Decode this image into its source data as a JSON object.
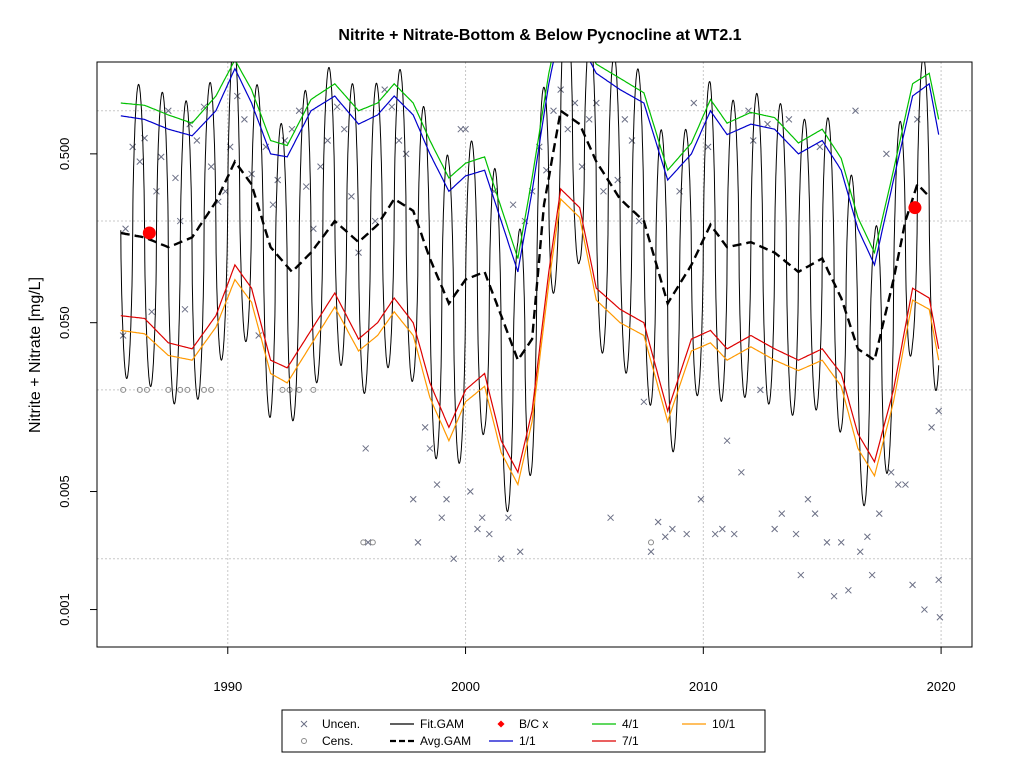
{
  "chart_data": {
    "type": "line",
    "title": "Nitrite + Nitrate-Bottom & Below Pycnocline at WT2.1",
    "ylabel": "Nitrite + Nitrate [mg/L]",
    "xlabel": "",
    "y_scale": "log",
    "xlim": [
      1984.5,
      2021.3
    ],
    "ylim": [
      0.0006,
      1.75
    ],
    "x_ticks": [
      1990,
      2000,
      2010,
      2020
    ],
    "x_tick_labels": [
      "1990",
      "2000",
      "2010",
      "2020"
    ],
    "y_ticks": [
      0.001,
      0.005,
      0.05,
      0.5
    ],
    "y_tick_labels": [
      "0.001",
      "0.005",
      "0.050",
      "0.500"
    ],
    "y_gridlines": [
      0.002,
      0.02,
      0.2,
      0.9
    ],
    "grid": true,
    "legend_position": "bottom",
    "colors": {
      "uncen": "#6b6f85",
      "cens": "#8a8a8a",
      "fit_gam": "#000000",
      "avg_gam": "#000000",
      "bc": "#ff0000",
      "apr": "#00c000",
      "jan": "#0000cc",
      "jul": "#dd0000",
      "oct": "#ff9900"
    },
    "legend": [
      {
        "label": "Uncen.",
        "symbol": "cross"
      },
      {
        "label": "Cens.",
        "symbol": "circle"
      },
      {
        "label": "Fit.GAM",
        "symbol": "solid-line"
      },
      {
        "label": "Avg.GAM",
        "symbol": "dashed-line"
      },
      {
        "label": "B/C x",
        "symbol": "diamond"
      },
      {
        "label": "1/1",
        "symbol": "blue-line"
      },
      {
        "label": "4/1",
        "symbol": "green-line"
      },
      {
        "label": "7/1",
        "symbol": "red-line"
      },
      {
        "label": "10/1",
        "symbol": "orange-line"
      }
    ],
    "bc_points": [
      {
        "x": 1986.7,
        "y": 0.17
      },
      {
        "x": 2018.9,
        "y": 0.24
      }
    ],
    "series": [
      {
        "name": "Avg.GAM",
        "x": [
          1985.5,
          1986.5,
          1987.5,
          1988.5,
          1989.5,
          1990.3,
          1991.0,
          1991.8,
          1992.7,
          1993.5,
          1994.5,
          1995.5,
          1996.3,
          1997.0,
          1997.8,
          1998.5,
          1999.3,
          2000.0,
          2000.8,
          2001.5,
          2002.2,
          2002.8,
          2003.3,
          2004.0,
          2004.8,
          2005.5,
          2006.5,
          2007.5,
          2008.5,
          2009.5,
          2010.3,
          2011.0,
          2012.0,
          2013.0,
          2014.0,
          2015.0,
          2015.8,
          2016.5,
          2017.2,
          2018.0,
          2018.5,
          2019.0,
          2019.5
        ],
        "y": [
          0.17,
          0.16,
          0.14,
          0.16,
          0.26,
          0.45,
          0.33,
          0.14,
          0.1,
          0.13,
          0.2,
          0.15,
          0.19,
          0.27,
          0.23,
          0.12,
          0.065,
          0.09,
          0.1,
          0.055,
          0.03,
          0.04,
          0.25,
          0.9,
          0.75,
          0.45,
          0.27,
          0.2,
          0.065,
          0.11,
          0.19,
          0.14,
          0.15,
          0.13,
          0.1,
          0.12,
          0.07,
          0.035,
          0.03,
          0.09,
          0.2,
          0.33,
          0.28
        ]
      },
      {
        "name": "1/1",
        "x": [
          1985.5,
          1986.5,
          1987.5,
          1988.5,
          1989.5,
          1990.3,
          1991.0,
          1991.8,
          1992.5,
          1993.5,
          1994.5,
          1995.5,
          1996.3,
          1997.0,
          1997.8,
          1998.5,
          1999.3,
          2000.0,
          2000.8,
          2001.5,
          2002.2,
          2002.8,
          2003.5,
          2004.0,
          2004.8,
          2005.5,
          2006.5,
          2007.5,
          2008.5,
          2009.5,
          2010.3,
          2011.0,
          2012.0,
          2013.0,
          2014.0,
          2015.0,
          2015.8,
          2016.5,
          2017.2,
          2018.0,
          2018.8,
          2019.5,
          2019.9
        ],
        "y": [
          0.84,
          0.8,
          0.7,
          0.64,
          0.9,
          1.6,
          1.0,
          0.5,
          0.48,
          0.9,
          1.1,
          0.75,
          0.85,
          1.1,
          0.85,
          0.5,
          0.3,
          0.37,
          0.4,
          0.2,
          0.1,
          0.3,
          1.3,
          2.8,
          2.3,
          1.5,
          1.2,
          1.0,
          0.35,
          0.5,
          0.9,
          0.65,
          0.75,
          0.7,
          0.5,
          0.6,
          0.4,
          0.18,
          0.11,
          0.35,
          1.1,
          1.3,
          0.65
        ]
      },
      {
        "name": "4/1",
        "x": [
          1985.5,
          1986.5,
          1987.5,
          1988.5,
          1989.5,
          1990.3,
          1991.0,
          1991.8,
          1992.5,
          1993.5,
          1994.5,
          1995.5,
          1996.3,
          1997.0,
          1997.8,
          1998.5,
          1999.3,
          2000.0,
          2000.8,
          2001.5,
          2002.2,
          2002.8,
          2003.5,
          2004.0,
          2004.8,
          2005.5,
          2006.5,
          2007.5,
          2008.5,
          2009.5,
          2010.3,
          2011.0,
          2012.0,
          2013.0,
          2014.0,
          2015.0,
          2015.8,
          2016.5,
          2017.2,
          2018.0,
          2018.8,
          2019.5,
          2019.9
        ],
        "y": [
          1.0,
          0.97,
          0.85,
          0.76,
          1.1,
          1.8,
          1.2,
          0.6,
          0.56,
          1.05,
          1.3,
          0.9,
          1.0,
          1.3,
          1.0,
          0.6,
          0.36,
          0.44,
          0.48,
          0.24,
          0.12,
          0.36,
          1.5,
          3.2,
          2.6,
          1.7,
          1.4,
          1.15,
          0.4,
          0.58,
          1.05,
          0.76,
          0.88,
          0.82,
          0.58,
          0.7,
          0.47,
          0.21,
          0.13,
          0.4,
          1.3,
          1.5,
          0.8
        ]
      },
      {
        "name": "7/1",
        "x": [
          1985.5,
          1986.5,
          1987.5,
          1988.5,
          1989.5,
          1990.3,
          1991.0,
          1991.8,
          1992.5,
          1993.5,
          1994.5,
          1995.5,
          1996.3,
          1997.0,
          1997.8,
          1998.5,
          1999.3,
          2000.0,
          2000.8,
          2001.5,
          2002.2,
          2002.8,
          2003.5,
          2004.0,
          2004.8,
          2005.5,
          2006.5,
          2007.5,
          2008.5,
          2009.5,
          2010.3,
          2011.0,
          2012.0,
          2013.0,
          2014.0,
          2015.0,
          2015.8,
          2016.5,
          2017.2,
          2018.0,
          2018.8,
          2019.5,
          2019.9
        ],
        "y": [
          0.055,
          0.053,
          0.038,
          0.035,
          0.055,
          0.11,
          0.08,
          0.03,
          0.027,
          0.045,
          0.075,
          0.04,
          0.05,
          0.07,
          0.05,
          0.022,
          0.012,
          0.02,
          0.025,
          0.01,
          0.0065,
          0.015,
          0.1,
          0.31,
          0.24,
          0.08,
          0.06,
          0.05,
          0.015,
          0.04,
          0.045,
          0.035,
          0.042,
          0.035,
          0.03,
          0.035,
          0.025,
          0.011,
          0.0075,
          0.02,
          0.08,
          0.07,
          0.035
        ]
      },
      {
        "name": "10/1",
        "x": [
          1985.5,
          1986.5,
          1987.5,
          1988.5,
          1989.5,
          1990.3,
          1991.0,
          1991.8,
          1992.5,
          1993.5,
          1994.5,
          1995.5,
          1996.3,
          1997.0,
          1997.8,
          1998.5,
          1999.3,
          2000.0,
          2000.8,
          2001.5,
          2002.2,
          2002.8,
          2003.5,
          2004.0,
          2004.8,
          2005.5,
          2006.5,
          2007.5,
          2008.5,
          2009.5,
          2010.3,
          2011.0,
          2012.0,
          2013.0,
          2014.0,
          2015.0,
          2015.8,
          2016.5,
          2017.2,
          2018.0,
          2018.8,
          2019.5,
          2019.9
        ],
        "y": [
          0.045,
          0.043,
          0.032,
          0.03,
          0.047,
          0.09,
          0.066,
          0.025,
          0.022,
          0.037,
          0.062,
          0.034,
          0.042,
          0.058,
          0.042,
          0.018,
          0.01,
          0.017,
          0.021,
          0.0085,
          0.0055,
          0.013,
          0.085,
          0.27,
          0.21,
          0.068,
          0.05,
          0.042,
          0.013,
          0.034,
          0.038,
          0.03,
          0.036,
          0.03,
          0.026,
          0.03,
          0.021,
          0.009,
          0.0062,
          0.017,
          0.068,
          0.06,
          0.03
        ]
      }
    ],
    "fit_gam": {
      "name": "Fit.GAM",
      "start_year": 1985.5,
      "end_year": 2019.9,
      "cycles_per_year": 1,
      "peak_phase": 0.25
    },
    "uncensored_points": [
      [
        1985.6,
        0.042
      ],
      [
        1985.7,
        0.18
      ],
      [
        1986.0,
        0.55
      ],
      [
        1986.3,
        0.45
      ],
      [
        1986.5,
        0.62
      ],
      [
        1986.8,
        0.058
      ],
      [
        1987.0,
        0.3
      ],
      [
        1987.2,
        0.48
      ],
      [
        1987.5,
        0.9
      ],
      [
        1987.8,
        0.36
      ],
      [
        1988.0,
        0.2
      ],
      [
        1988.2,
        0.06
      ],
      [
        1988.4,
        0.75
      ],
      [
        1988.7,
        0.6
      ],
      [
        1989.0,
        0.95
      ],
      [
        1989.3,
        0.42
      ],
      [
        1989.6,
        0.26
      ],
      [
        1989.9,
        0.3
      ],
      [
        1990.1,
        0.55
      ],
      [
        1990.4,
        1.1
      ],
      [
        1990.7,
        0.8
      ],
      [
        1991.0,
        0.38
      ],
      [
        1991.3,
        0.042
      ],
      [
        1991.6,
        0.55
      ],
      [
        1991.9,
        0.25
      ],
      [
        1992.1,
        0.35
      ],
      [
        1992.4,
        0.6
      ],
      [
        1992.7,
        0.7
      ],
      [
        1993.0,
        0.9
      ],
      [
        1993.3,
        0.32
      ],
      [
        1993.6,
        0.18
      ],
      [
        1993.9,
        0.42
      ],
      [
        1994.2,
        0.6
      ],
      [
        1994.6,
        0.95
      ],
      [
        1994.9,
        0.7
      ],
      [
        1995.2,
        0.28
      ],
      [
        1995.5,
        0.13
      ],
      [
        1995.8,
        0.009
      ],
      [
        1995.9,
        0.0025
      ],
      [
        1996.2,
        0.2
      ],
      [
        1996.6,
        1.2
      ],
      [
        1996.9,
        0.95
      ],
      [
        1997.2,
        0.6
      ],
      [
        1997.5,
        0.5
      ],
      [
        1997.8,
        0.0045
      ],
      [
        1998.0,
        0.0025
      ],
      [
        1998.3,
        0.012
      ],
      [
        1998.5,
        0.009
      ],
      [
        1998.8,
        0.0055
      ],
      [
        1999.0,
        0.0035
      ],
      [
        1999.2,
        0.0045
      ],
      [
        1999.5,
        0.002
      ],
      [
        1999.8,
        0.7
      ],
      [
        2000.0,
        0.7
      ],
      [
        2000.2,
        0.005
      ],
      [
        2000.5,
        0.003
      ],
      [
        2000.7,
        0.0035
      ],
      [
        2001.0,
        0.0028
      ],
      [
        2001.2,
        0.3
      ],
      [
        2001.5,
        0.002
      ],
      [
        2001.8,
        0.0035
      ],
      [
        2002.0,
        0.25
      ],
      [
        2002.3,
        0.0022
      ],
      [
        2002.5,
        0.2
      ],
      [
        2002.8,
        0.3
      ],
      [
        2003.1,
        0.55
      ],
      [
        2003.4,
        0.4
      ],
      [
        2003.7,
        0.9
      ],
      [
        2004.0,
        1.2
      ],
      [
        2004.3,
        0.7
      ],
      [
        2004.6,
        1.0
      ],
      [
        2004.9,
        0.42
      ],
      [
        2005.2,
        0.8
      ],
      [
        2005.5,
        1.0
      ],
      [
        2005.8,
        0.3
      ],
      [
        2006.1,
        0.0035
      ],
      [
        2006.4,
        0.35
      ],
      [
        2006.7,
        0.8
      ],
      [
        2007.0,
        0.6
      ],
      [
        2007.3,
        0.2
      ],
      [
        2007.5,
        0.017
      ],
      [
        2007.8,
        0.0022
      ],
      [
        2008.1,
        0.0033
      ],
      [
        2008.4,
        0.0027
      ],
      [
        2008.7,
        0.003
      ],
      [
        2009.0,
        0.3
      ],
      [
        2009.3,
        0.0028
      ],
      [
        2009.6,
        1.0
      ],
      [
        2009.9,
        0.0045
      ],
      [
        2010.2,
        0.55
      ],
      [
        2010.5,
        0.0028
      ],
      [
        2010.8,
        0.003
      ],
      [
        2011.0,
        0.01
      ],
      [
        2011.3,
        0.0028
      ],
      [
        2011.6,
        0.0065
      ],
      [
        2011.9,
        0.9
      ],
      [
        2012.1,
        0.6
      ],
      [
        2012.4,
        0.02
      ],
      [
        2012.7,
        0.75
      ],
      [
        2013.0,
        0.003
      ],
      [
        2013.3,
        0.0037
      ],
      [
        2013.6,
        0.8
      ],
      [
        2013.9,
        0.0028
      ],
      [
        2014.1,
        0.0016
      ],
      [
        2014.4,
        0.0045
      ],
      [
        2014.7,
        0.0037
      ],
      [
        2014.9,
        0.55
      ],
      [
        2015.2,
        0.0025
      ],
      [
        2015.5,
        0.0012
      ],
      [
        2015.8,
        0.0025
      ],
      [
        2016.1,
        0.0013
      ],
      [
        2016.4,
        0.9
      ],
      [
        2016.6,
        0.0022
      ],
      [
        2016.9,
        0.0027
      ],
      [
        2017.1,
        0.0016
      ],
      [
        2017.4,
        0.0037
      ],
      [
        2017.7,
        0.5
      ],
      [
        2017.9,
        0.0065
      ],
      [
        2018.2,
        0.0055
      ],
      [
        2018.5,
        0.0055
      ],
      [
        2018.8,
        0.0014
      ],
      [
        2019.0,
        0.8
      ],
      [
        2019.3,
        0.001
      ],
      [
        2019.6,
        0.012
      ],
      [
        2019.9,
        0.0015
      ],
      [
        2019.95,
        0.0009
      ],
      [
        2019.9,
        0.015
      ]
    ],
    "censored_points": [
      [
        1985.6,
        0.02
      ],
      [
        1986.3,
        0.02
      ],
      [
        1986.6,
        0.02
      ],
      [
        1987.5,
        0.02
      ],
      [
        1988.0,
        0.02
      ],
      [
        1988.3,
        0.02
      ],
      [
        1989.0,
        0.02
      ],
      [
        1989.3,
        0.02
      ],
      [
        1992.3,
        0.02
      ],
      [
        1992.6,
        0.02
      ],
      [
        1993.0,
        0.02
      ],
      [
        1993.6,
        0.02
      ],
      [
        1995.7,
        0.0025
      ],
      [
        1996.1,
        0.0025
      ],
      [
        2007.8,
        0.0025
      ]
    ]
  }
}
